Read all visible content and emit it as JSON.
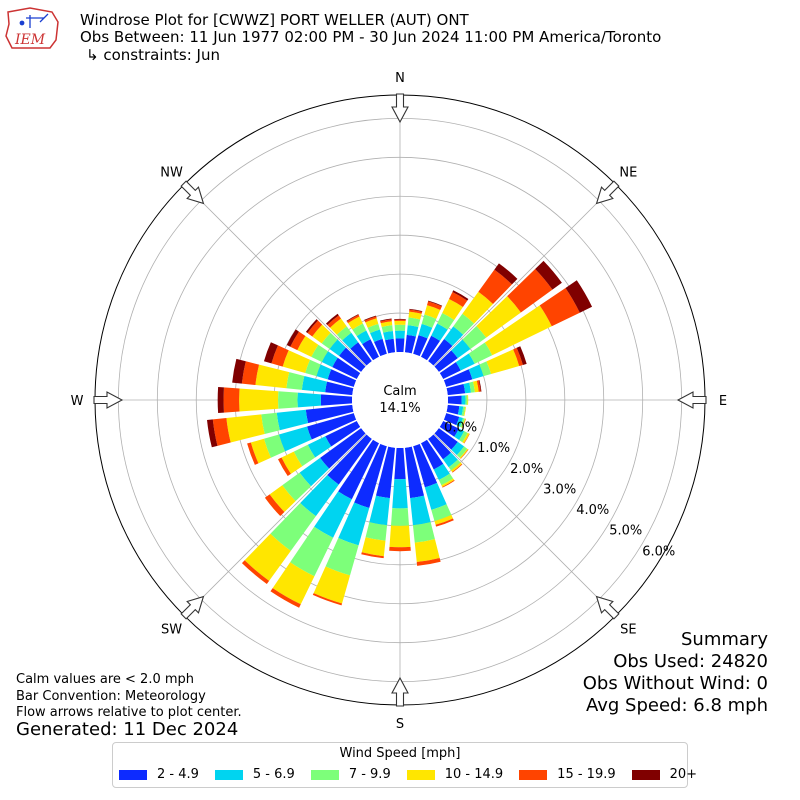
{
  "header": {
    "title": "Windrose Plot for [CWWZ] PORT WELLER (AUT)  ONT",
    "period": "Obs Between: 11 Jun 1977 02:00 PM - 30 Jun 2024 11:00 PM America/Toronto",
    "constraints": "↳ constraints: Jun",
    "logo_text": "IEM"
  },
  "notes": {
    "calm_def": "Calm values are < 2.0 mph",
    "bar_convention": "Bar Convention: Meteorology",
    "flow_arrows": "Flow arrows relative to plot center.",
    "generated": "Generated: 11 Dec 2024"
  },
  "summary": {
    "title": "Summary",
    "obs_used": "Obs Used: 24820",
    "obs_without_wind": "Obs Without Wind: 0",
    "avg_speed": "Avg Speed: 6.8 mph"
  },
  "chart_data": {
    "type": "windrose",
    "calm_label": "Calm",
    "calm_value": "14.1%",
    "directions": [
      "N",
      "NE",
      "E",
      "SE",
      "S",
      "SW",
      "W",
      "NW"
    ],
    "radial_ticks": [
      "0.0%",
      "1.0%",
      "2.0%",
      "3.0%",
      "4.0%",
      "5.0%",
      "6.0%"
    ],
    "radial_max": 6.6,
    "legend_title": "Wind Speed [mph]",
    "bins": [
      {
        "label": "2 - 4.9",
        "color": "#0d2bff"
      },
      {
        "label": "5 - 6.9",
        "color": "#00d4f0"
      },
      {
        "label": "7 - 9.9",
        "color": "#7dff7a"
      },
      {
        "label": "10 - 14.9",
        "color": "#ffe600"
      },
      {
        "label": "15 - 19.9",
        "color": "#ff4400"
      },
      {
        "label": "20+",
        "color": "#800000"
      }
    ],
    "sectors_deg": [
      0,
      10,
      20,
      30,
      40,
      50,
      60,
      70,
      80,
      90,
      100,
      110,
      120,
      130,
      140,
      150,
      160,
      170,
      180,
      190,
      200,
      210,
      220,
      230,
      240,
      250,
      260,
      270,
      280,
      290,
      300,
      310,
      320,
      330,
      340,
      350
    ],
    "values_pct": [
      [
        0.35,
        0.2,
        0.15,
        0.1,
        0.03,
        0.02
      ],
      [
        0.45,
        0.25,
        0.2,
        0.15,
        0.05,
        0.02
      ],
      [
        0.5,
        0.3,
        0.25,
        0.25,
        0.1,
        0.02
      ],
      [
        0.6,
        0.35,
        0.3,
        0.4,
        0.2,
        0.05
      ],
      [
        0.7,
        0.4,
        0.4,
        0.7,
        0.7,
        0.2
      ],
      [
        0.6,
        0.4,
        0.5,
        1.1,
        1.0,
        0.3
      ],
      [
        0.5,
        0.4,
        0.5,
        1.7,
        0.8,
        0.35
      ],
      [
        0.7,
        0.3,
        0.2,
        0.75,
        0.1,
        0.1
      ],
      [
        0.45,
        0.15,
        0.1,
        0.1,
        0.05,
        0.02
      ],
      [
        0.35,
        0.1,
        0.05,
        0.02,
        0.0,
        0.0
      ],
      [
        0.3,
        0.1,
        0.05,
        0.02,
        0.0,
        0.0
      ],
      [
        0.35,
        0.1,
        0.05,
        0.02,
        0.01,
        0.0
      ],
      [
        0.45,
        0.15,
        0.1,
        0.05,
        0.01,
        0.0
      ],
      [
        0.6,
        0.2,
        0.1,
        0.03,
        0.01,
        0.0
      ],
      [
        0.65,
        0.25,
        0.1,
        0.05,
        0.02,
        0.0
      ],
      [
        0.75,
        0.3,
        0.15,
        0.05,
        0.02,
        0.0
      ],
      [
        1.1,
        0.6,
        0.3,
        0.1,
        0.05,
        0.0
      ],
      [
        1.3,
        0.7,
        0.45,
        0.5,
        0.1,
        0.0
      ],
      [
        0.8,
        0.75,
        0.45,
        0.55,
        0.1,
        0.0
      ],
      [
        1.3,
        0.7,
        0.4,
        0.4,
        0.05,
        0.0
      ],
      [
        1.65,
        1.0,
        0.8,
        0.75,
        0.05,
        0.0
      ],
      [
        1.6,
        1.1,
        1.1,
        0.8,
        0.1,
        0.0
      ],
      [
        1.45,
        1.0,
        1.1,
        0.95,
        0.1,
        0.0
      ],
      [
        1.3,
        0.65,
        0.55,
        0.4,
        0.15,
        0.0
      ],
      [
        0.9,
        0.5,
        0.4,
        0.35,
        0.1,
        0.0
      ],
      [
        1.25,
        0.75,
        0.4,
        0.35,
        0.1,
        0.0
      ],
      [
        1.2,
        0.75,
        0.4,
        0.9,
        0.35,
        0.15
      ],
      [
        0.8,
        0.6,
        0.5,
        1.0,
        0.4,
        0.15
      ],
      [
        0.7,
        0.6,
        0.4,
        0.8,
        0.35,
        0.25
      ],
      [
        0.7,
        0.3,
        0.3,
        0.6,
        0.3,
        0.2
      ],
      [
        0.7,
        0.3,
        0.3,
        0.4,
        0.2,
        0.1
      ],
      [
        0.7,
        0.3,
        0.25,
        0.3,
        0.15,
        0.05
      ],
      [
        0.6,
        0.3,
        0.2,
        0.25,
        0.1,
        0.05
      ],
      [
        0.5,
        0.25,
        0.2,
        0.2,
        0.05,
        0.02
      ],
      [
        0.4,
        0.25,
        0.15,
        0.15,
        0.05,
        0.02
      ],
      [
        0.35,
        0.2,
        0.15,
        0.1,
        0.05,
        0.02
      ]
    ]
  }
}
